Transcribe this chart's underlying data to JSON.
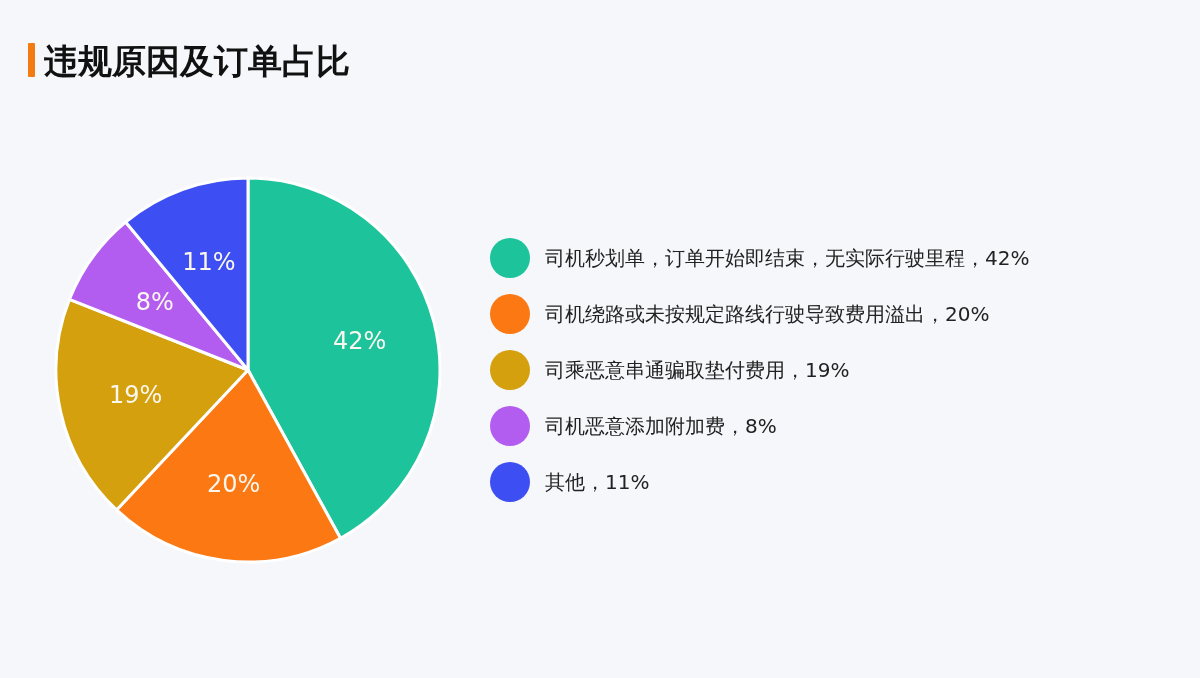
{
  "chart_data": {
    "type": "pie",
    "title": "违规原因及订单占比",
    "categories": [
      "司机秒划单，订单开始即结束，无实际行驶里程，42%",
      "司机绕路或未按规定路线行驶导致费用溢出，20%",
      "司乘恶意串通骗取垫付费用，19%",
      "司机恶意添加附加费，8%",
      "其他，11%"
    ],
    "values": [
      42,
      20,
      19,
      8,
      11
    ],
    "value_labels": [
      "42%",
      "20%",
      "19%",
      "8%",
      "11%"
    ],
    "colors": [
      "#1dc49b",
      "#fb7812",
      "#d4a00e",
      "#b35df0",
      "#3d4ff2"
    ],
    "legend": "right"
  }
}
